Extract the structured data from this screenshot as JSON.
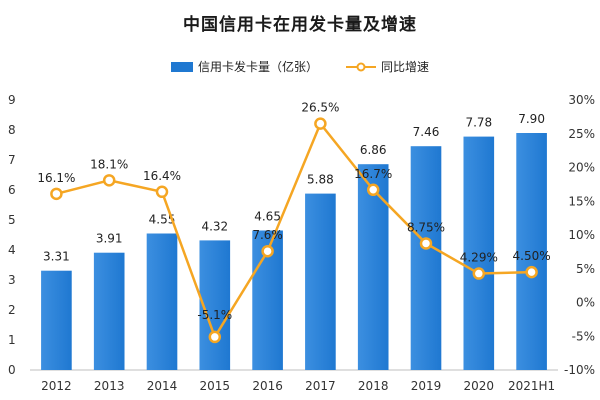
{
  "chart_data": {
    "type": "bar",
    "title": "中国信用卡在用发卡量及增速",
    "categories": [
      "2012",
      "2013",
      "2014",
      "2015",
      "2016",
      "2017",
      "2018",
      "2019",
      "2020",
      "2021H1"
    ],
    "series": [
      {
        "name": "信用卡发卡量（亿张）",
        "type": "bar",
        "axis": "left",
        "values": [
          3.31,
          3.91,
          4.55,
          4.32,
          4.65,
          5.88,
          6.86,
          7.46,
          7.78,
          7.9
        ],
        "labels": [
          "3.31",
          "3.91",
          "4.55",
          "4.32",
          "4.65",
          "5.88",
          "6.86",
          "7.46",
          "7.78",
          "7.90"
        ]
      },
      {
        "name": "同比增速",
        "type": "line",
        "axis": "right",
        "values": [
          16.1,
          18.1,
          16.4,
          -5.1,
          7.6,
          26.5,
          16.7,
          8.75,
          4.29,
          4.5
        ],
        "labels": [
          "16.1%",
          "18.1%",
          "16.4%",
          "-5.1%",
          "7.6%",
          "26.5%",
          "16.7%",
          "8.75%",
          "4.29%",
          "4.50%"
        ]
      }
    ],
    "y_left": {
      "min": 0,
      "max": 9,
      "ticks": [
        "0",
        "1",
        "2",
        "3",
        "4",
        "5",
        "6",
        "7",
        "8",
        "9"
      ]
    },
    "y_right": {
      "min": -10,
      "max": 30,
      "ticks": [
        "-10%",
        "-5%",
        "0%",
        "5%",
        "10%",
        "15%",
        "20%",
        "25%",
        "30%"
      ]
    },
    "colors": {
      "bar": "#1f78d1",
      "bar_light": "#3c8fe0",
      "line": "#f5a623",
      "marker_fill": "#ffffff"
    },
    "legend_position": "top-center"
  }
}
